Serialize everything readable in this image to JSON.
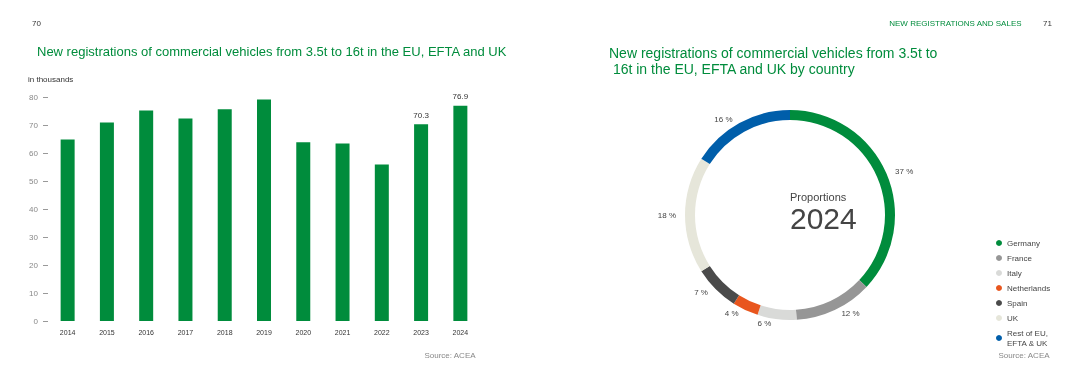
{
  "chart_data": [
    {
      "type": "bar",
      "title": "New registrations of commercial vehicles from 3.5t to 16t in the EU, EFTA and UK",
      "ylabel": "in thousands",
      "categories": [
        "2014",
        "2015",
        "2016",
        "2017",
        "2018",
        "2019",
        "2020",
        "2021",
        "2022",
        "2023",
        "2024"
      ],
      "values": [
        64.8,
        70.9,
        75.2,
        72.3,
        75.6,
        79.1,
        63.8,
        63.4,
        55.9,
        70.3,
        76.9
      ],
      "value_labels": [
        null,
        null,
        null,
        null,
        null,
        null,
        null,
        null,
        null,
        "70.3",
        "76.9"
      ],
      "color": "#008c3c",
      "ylim": [
        0,
        80
      ],
      "yticks": [
        0,
        10,
        20,
        30,
        40,
        50,
        60,
        70,
        80
      ],
      "grid": false,
      "legend": false,
      "annotations": [
        "70",
        "Source: ACEA"
      ]
    },
    {
      "type": "donut",
      "title": "New registrations of commercial vehicles from 3.5t to 16t in the EU, EFTA and UK by country",
      "categories": [
        "Germany",
        "France",
        "Italy",
        "Netherlands",
        "Spain",
        "UK",
        "Rest of EU, EFTA & UK"
      ],
      "values": [
        37,
        12,
        6,
        4,
        7,
        18,
        16
      ],
      "value_labels": [
        "37 %",
        "12 %",
        "6 %",
        "4 %",
        "7 %",
        "18 %",
        "16 %"
      ],
      "colors": [
        "#008c3c",
        "#969696",
        "#d9dad8",
        "#e8561e",
        "#4a4a4a",
        "#e6e6da",
        "#005eaa"
      ],
      "legend": "bottom right",
      "marker": "circle",
      "annotations": [
        "NEW REGISTRATIONS AND SALES",
        "71",
        "Proportions",
        "2024",
        "Source: ACEA"
      ]
    }
  ]
}
